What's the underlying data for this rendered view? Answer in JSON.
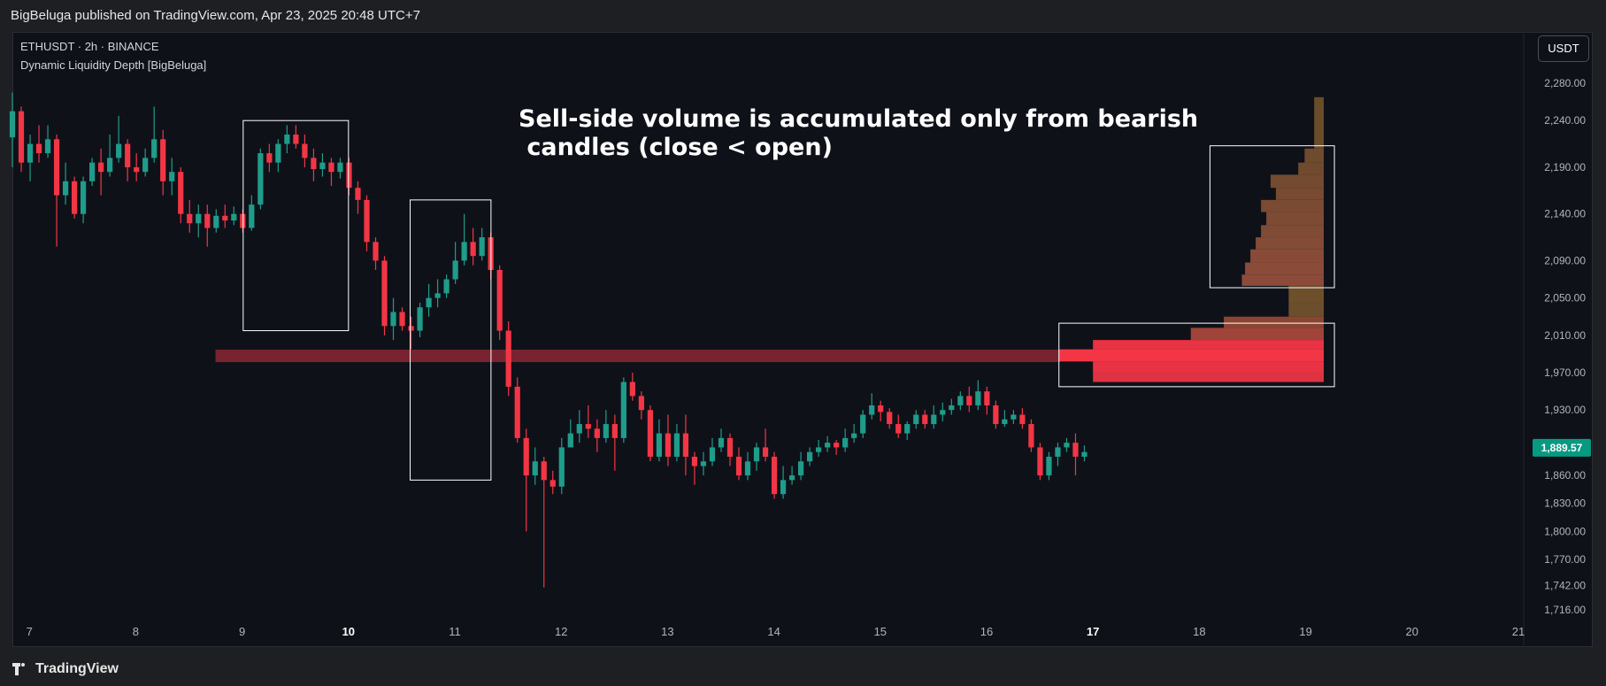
{
  "header": {
    "published": "BigBeluga published on TradingView.com, Apr 23, 2025 20:48 UTC+7"
  },
  "legend": {
    "symbol": "ETHUSDT · 2h · BINANCE",
    "indicator": "Dynamic Liquidity Depth [BigBeluga]"
  },
  "currency_button": "USDT",
  "annotation": "Sell-side volume is accumulated only from bearish\n candles (close < open)",
  "footer": {
    "brand": "TradingView"
  },
  "colors": {
    "bull": "#1f9c8a",
    "bear": "#f23645",
    "background": "#0f1119",
    "liquidity_brown": "#a15c3a",
    "liquidity_red": "#f23645",
    "last_price_bg": "#089981"
  },
  "chart_data": {
    "type": "candlestick",
    "symbol": "ETHUSDT",
    "interval": "2h",
    "exchange": "BINANCE",
    "ylim": [
      1690,
      2310
    ],
    "y_ticks": [
      2280,
      2240,
      2190,
      2140,
      2090,
      2050,
      2010,
      1970,
      1930,
      1890,
      1860,
      1830,
      1800,
      1770,
      1742,
      1716
    ],
    "y_tick_labels": [
      "2,280.00",
      "2,240.00",
      "2,190.00",
      "2,140.00",
      "2,090.00",
      "2,050.00",
      "2,010.00",
      "1,970.00",
      "1,930.00",
      "1,890.00",
      "1,860.00",
      "1,830.00",
      "1,800.00",
      "1,770.00",
      "1,742.00",
      "1,716.00"
    ],
    "x_range": [
      6.84,
      21.05
    ],
    "x_ticks": [
      {
        "label": "7",
        "day": 7,
        "bold": false
      },
      {
        "label": "8",
        "day": 8,
        "bold": false
      },
      {
        "label": "9",
        "day": 9,
        "bold": false
      },
      {
        "label": "10",
        "day": 10,
        "bold": true
      },
      {
        "label": "11",
        "day": 11,
        "bold": false
      },
      {
        "label": "12",
        "day": 12,
        "bold": false
      },
      {
        "label": "13",
        "day": 13,
        "bold": false
      },
      {
        "label": "14",
        "day": 14,
        "bold": false
      },
      {
        "label": "15",
        "day": 15,
        "bold": false
      },
      {
        "label": "16",
        "day": 16,
        "bold": false
      },
      {
        "label": "17",
        "day": 17,
        "bold": true
      },
      {
        "label": "18",
        "day": 18,
        "bold": false
      },
      {
        "label": "19",
        "day": 19,
        "bold": false
      },
      {
        "label": "20",
        "day": 20,
        "bold": false
      },
      {
        "label": "21",
        "day": 21,
        "bold": false
      }
    ],
    "last_price": 1889.57,
    "last_price_label": "1,889.57",
    "candles_start_day": 6.84,
    "candle_step_days": 0.0833,
    "candles": [
      [
        2222,
        2250,
        2270,
        2190
      ],
      [
        2250,
        2195,
        2255,
        2185
      ],
      [
        2195,
        2215,
        2225,
        2175
      ],
      [
        2215,
        2205,
        2235,
        2195
      ],
      [
        2205,
        2220,
        2235,
        2200
      ],
      [
        2220,
        2160,
        2225,
        2105
      ],
      [
        2160,
        2175,
        2195,
        2150
      ],
      [
        2175,
        2140,
        2180,
        2135
      ],
      [
        2140,
        2175,
        2180,
        2130
      ],
      [
        2175,
        2195,
        2200,
        2170
      ],
      [
        2195,
        2185,
        2210,
        2160
      ],
      [
        2185,
        2200,
        2225,
        2180
      ],
      [
        2200,
        2215,
        2245,
        2195
      ],
      [
        2215,
        2190,
        2220,
        2175
      ],
      [
        2190,
        2185,
        2205,
        2175
      ],
      [
        2185,
        2200,
        2210,
        2180
      ],
      [
        2200,
        2220,
        2255,
        2195
      ],
      [
        2220,
        2175,
        2230,
        2160
      ],
      [
        2175,
        2185,
        2200,
        2160
      ],
      [
        2185,
        2140,
        2190,
        2130
      ],
      [
        2140,
        2130,
        2155,
        2120
      ],
      [
        2130,
        2140,
        2150,
        2115
      ],
      [
        2140,
        2125,
        2150,
        2105
      ],
      [
        2125,
        2138,
        2145,
        2120
      ],
      [
        2138,
        2133,
        2150,
        2125
      ],
      [
        2133,
        2140,
        2148,
        2128
      ],
      [
        2140,
        2125,
        2145,
        2120
      ],
      [
        2125,
        2150,
        2160,
        2122
      ],
      [
        2150,
        2205,
        2210,
        2145
      ],
      [
        2205,
        2195,
        2215,
        2185
      ],
      [
        2195,
        2215,
        2220,
        2185
      ],
      [
        2215,
        2225,
        2235,
        2205
      ],
      [
        2225,
        2215,
        2235,
        2210
      ],
      [
        2215,
        2200,
        2225,
        2190
      ],
      [
        2200,
        2188,
        2210,
        2175
      ],
      [
        2188,
        2195,
        2205,
        2180
      ],
      [
        2195,
        2185,
        2200,
        2170
      ],
      [
        2185,
        2195,
        2200,
        2178
      ],
      [
        2195,
        2168,
        2200,
        2160
      ],
      [
        2168,
        2155,
        2175,
        2140
      ],
      [
        2155,
        2110,
        2160,
        2100
      ],
      [
        2110,
        2090,
        2115,
        2080
      ],
      [
        2090,
        2020,
        2095,
        2010
      ],
      [
        2020,
        2035,
        2050,
        2005
      ],
      [
        2035,
        2020,
        2040,
        2015
      ],
      [
        2020,
        2015,
        2030,
        1995
      ],
      [
        2015,
        2040,
        2045,
        2008
      ],
      [
        2040,
        2050,
        2065,
        2030
      ],
      [
        2050,
        2055,
        2070,
        2040
      ],
      [
        2055,
        2070,
        2075,
        2050
      ],
      [
        2070,
        2090,
        2110,
        2065
      ],
      [
        2090,
        2110,
        2140,
        2085
      ],
      [
        2110,
        2095,
        2125,
        2085
      ],
      [
        2095,
        2115,
        2125,
        2090
      ],
      [
        2115,
        2080,
        2120,
        2070
      ],
      [
        2080,
        2015,
        2085,
        2005
      ],
      [
        2015,
        1955,
        2025,
        1945
      ],
      [
        1955,
        1900,
        1965,
        1895
      ],
      [
        1900,
        1860,
        1910,
        1800
      ],
      [
        1860,
        1875,
        1890,
        1850
      ],
      [
        1875,
        1855,
        1880,
        1740
      ],
      [
        1855,
        1848,
        1865,
        1840
      ],
      [
        1848,
        1890,
        1900,
        1840
      ],
      [
        1890,
        1905,
        1920,
        1890
      ],
      [
        1905,
        1915,
        1930,
        1895
      ],
      [
        1915,
        1910,
        1935,
        1900
      ],
      [
        1910,
        1900,
        1920,
        1885
      ],
      [
        1900,
        1915,
        1930,
        1895
      ],
      [
        1915,
        1900,
        1925,
        1865
      ],
      [
        1900,
        1960,
        1965,
        1895
      ],
      [
        1960,
        1945,
        1970,
        1940
      ],
      [
        1945,
        1930,
        1950,
        1920
      ],
      [
        1930,
        1880,
        1935,
        1875
      ],
      [
        1880,
        1905,
        1920,
        1875
      ],
      [
        1905,
        1880,
        1925,
        1870
      ],
      [
        1880,
        1905,
        1915,
        1875
      ],
      [
        1905,
        1880,
        1925,
        1860
      ],
      [
        1880,
        1870,
        1885,
        1850
      ],
      [
        1870,
        1875,
        1885,
        1860
      ],
      [
        1875,
        1890,
        1900,
        1870
      ],
      [
        1890,
        1900,
        1910,
        1885
      ],
      [
        1900,
        1880,
        1905,
        1870
      ],
      [
        1880,
        1860,
        1890,
        1855
      ],
      [
        1860,
        1875,
        1885,
        1855
      ],
      [
        1875,
        1890,
        1895,
        1865
      ],
      [
        1890,
        1880,
        1910,
        1875
      ],
      [
        1880,
        1840,
        1885,
        1835
      ],
      [
        1840,
        1855,
        1870,
        1835
      ],
      [
        1855,
        1860,
        1870,
        1850
      ],
      [
        1860,
        1875,
        1885,
        1855
      ],
      [
        1875,
        1885,
        1890,
        1870
      ],
      [
        1885,
        1890,
        1898,
        1880
      ],
      [
        1890,
        1895,
        1902,
        1885
      ],
      [
        1895,
        1890,
        1898,
        1882
      ],
      [
        1890,
        1900,
        1910,
        1885
      ],
      [
        1900,
        1905,
        1915,
        1895
      ],
      [
        1905,
        1925,
        1930,
        1900
      ],
      [
        1925,
        1935,
        1948,
        1920
      ],
      [
        1935,
        1928,
        1940,
        1918
      ],
      [
        1928,
        1915,
        1932,
        1910
      ],
      [
        1915,
        1905,
        1925,
        1900
      ],
      [
        1905,
        1915,
        1918,
        1898
      ],
      [
        1915,
        1925,
        1930,
        1910
      ],
      [
        1925,
        1915,
        1930,
        1910
      ],
      [
        1915,
        1925,
        1935,
        1910
      ],
      [
        1925,
        1930,
        1938,
        1918
      ],
      [
        1930,
        1935,
        1942,
        1925
      ],
      [
        1935,
        1945,
        1950,
        1930
      ],
      [
        1945,
        1935,
        1955,
        1928
      ],
      [
        1935,
        1950,
        1962,
        1930
      ],
      [
        1950,
        1935,
        1955,
        1925
      ],
      [
        1935,
        1915,
        1940,
        1910
      ],
      [
        1915,
        1920,
        1930,
        1912
      ],
      [
        1920,
        1925,
        1930,
        1915
      ],
      [
        1925,
        1915,
        1932,
        1910
      ],
      [
        1915,
        1890,
        1920,
        1885
      ],
      [
        1890,
        1860,
        1895,
        1855
      ],
      [
        1860,
        1880,
        1885,
        1855
      ],
      [
        1880,
        1890,
        1895,
        1870
      ],
      [
        1890,
        1895,
        1900,
        1885
      ],
      [
        1895,
        1880,
        1905,
        1860
      ],
      [
        1880,
        1885,
        1892,
        1875
      ]
    ],
    "highlight_boxes": [
      {
        "name": "drop-box-1",
        "day_from": 9.01,
        "day_to": 10.0,
        "price_top": 2240,
        "price_bottom": 2015
      },
      {
        "name": "drop-box-2",
        "day_from": 10.58,
        "day_to": 11.34,
        "price_top": 2155,
        "price_bottom": 1855
      },
      {
        "name": "profile-box-upper",
        "day_from": 18.1,
        "day_to": 19.27,
        "price_top": 2213,
        "price_bottom": 2061
      },
      {
        "name": "profile-box-lower",
        "day_from": 16.68,
        "day_to": 19.27,
        "price_top": 2023,
        "price_bottom": 1955
      }
    ],
    "liquidity_line": {
      "price": 1988,
      "day_from": 8.75,
      "day_to": 16.68,
      "color": "#7a2330"
    },
    "liquidity_profile": {
      "right_day": 19.17,
      "levels": [
        {
          "price_top": 2265,
          "price_bottom": 2210,
          "left_day": 19.08,
          "color": "#6a4c2a"
        },
        {
          "price_top": 2210,
          "price_bottom": 2195,
          "left_day": 18.99,
          "color": "#6d4b2c"
        },
        {
          "price_top": 2195,
          "price_bottom": 2182,
          "left_day": 18.93,
          "color": "#704a2e"
        },
        {
          "price_top": 2182,
          "price_bottom": 2168,
          "left_day": 18.67,
          "color": "#744a30"
        },
        {
          "price_top": 2168,
          "price_bottom": 2155,
          "left_day": 18.72,
          "color": "#774a31"
        },
        {
          "price_top": 2155,
          "price_bottom": 2142,
          "left_day": 18.58,
          "color": "#7a4a32"
        },
        {
          "price_top": 2142,
          "price_bottom": 2128,
          "left_day": 18.63,
          "color": "#7d4b34"
        },
        {
          "price_top": 2128,
          "price_bottom": 2115,
          "left_day": 18.58,
          "color": "#804b35"
        },
        {
          "price_top": 2115,
          "price_bottom": 2102,
          "left_day": 18.53,
          "color": "#844b36"
        },
        {
          "price_top": 2102,
          "price_bottom": 2088,
          "left_day": 18.48,
          "color": "#874b38"
        },
        {
          "price_top": 2088,
          "price_bottom": 2075,
          "left_day": 18.43,
          "color": "#8a4b39"
        },
        {
          "price_top": 2075,
          "price_bottom": 2063,
          "left_day": 18.4,
          "color": "#8c4b3a"
        },
        {
          "price_top": 2063,
          "price_bottom": 2044,
          "left_day": 18.84,
          "color": "#6d4f2c"
        },
        {
          "price_top": 2044,
          "price_bottom": 2030,
          "left_day": 18.84,
          "color": "#6b4f2c"
        },
        {
          "price_top": 2030,
          "price_bottom": 2018,
          "left_day": 18.23,
          "color": "#8a4532"
        },
        {
          "price_top": 2018,
          "price_bottom": 2005,
          "left_day": 17.92,
          "color": "#a0443a"
        },
        {
          "price_top": 2005,
          "price_bottom": 1995,
          "left_day": 17.0,
          "color": "#e83344"
        },
        {
          "price_top": 1995,
          "price_bottom": 1982,
          "left_day": 16.68,
          "color": "#f23645"
        },
        {
          "price_top": 1982,
          "price_bottom": 1970,
          "left_day": 17.0,
          "color": "#e83344"
        },
        {
          "price_top": 1970,
          "price_bottom": 1960,
          "left_day": 17.0,
          "color": "#de3342"
        }
      ]
    }
  }
}
